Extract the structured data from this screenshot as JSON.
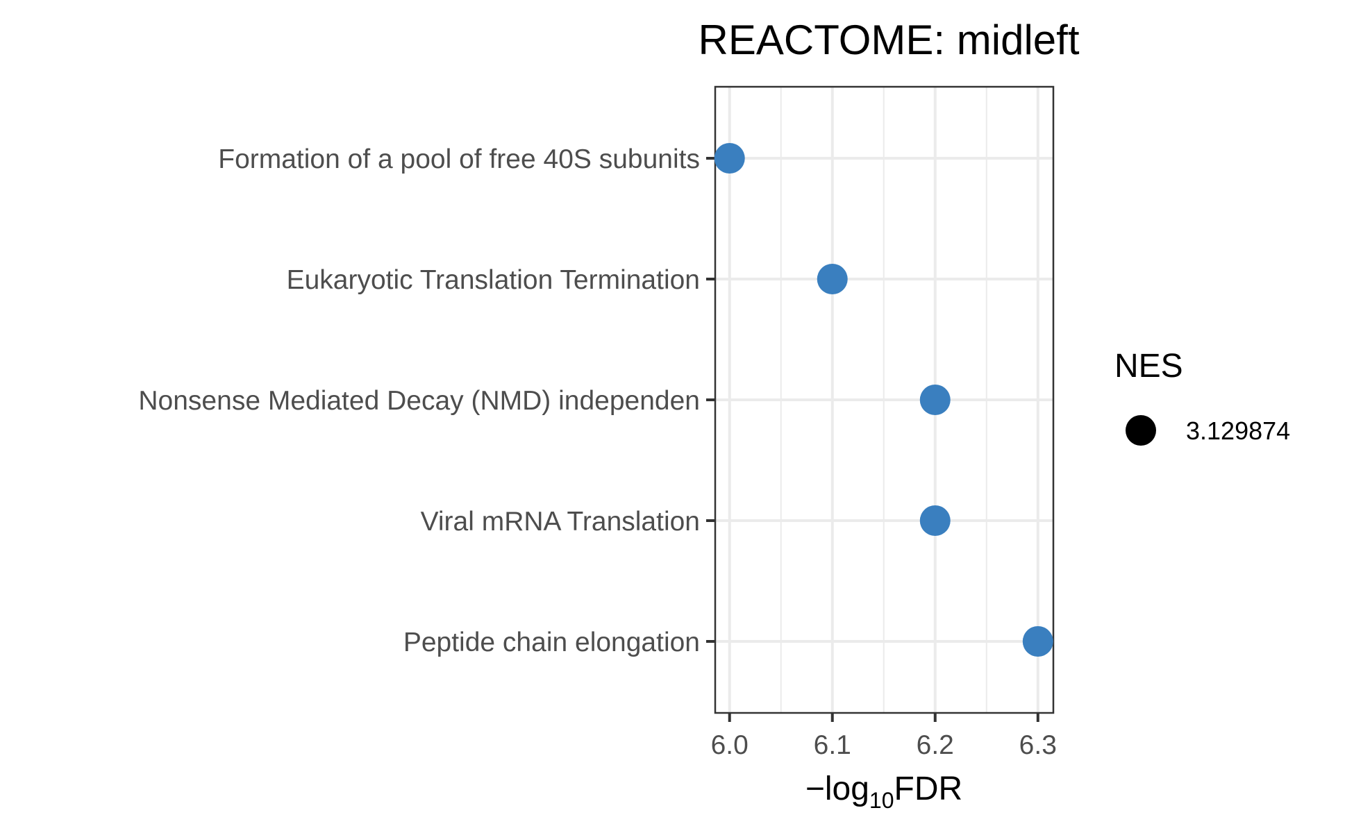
{
  "chart_data": {
    "type": "scatter",
    "title": "REACTOME: midleft",
    "xlabel": "−log",
    "xlabel_sub": "10",
    "xlabel_tail": "FDR",
    "ylabel": "",
    "categories": [
      "Formation of a pool of free 40S subunits",
      "Eukaryotic Translation Termination",
      "Nonsense Mediated Decay (NMD) independen",
      "Viral mRNA Translation",
      "Peptide chain elongation"
    ],
    "values": [
      6.0,
      6.1,
      6.2,
      6.2,
      6.3
    ],
    "x_ticks": [
      6.0,
      6.1,
      6.2,
      6.3
    ],
    "x_tick_labels": [
      "6.0",
      "6.1",
      "6.2",
      "6.3"
    ],
    "xlim": [
      5.986,
      6.315
    ],
    "grid": true,
    "legend": {
      "title": "NES",
      "entries": [
        {
          "label": "3.129874"
        }
      ],
      "placement": "right"
    },
    "point_color": "#3a7fbf",
    "legend_marker_color": "#000000"
  }
}
